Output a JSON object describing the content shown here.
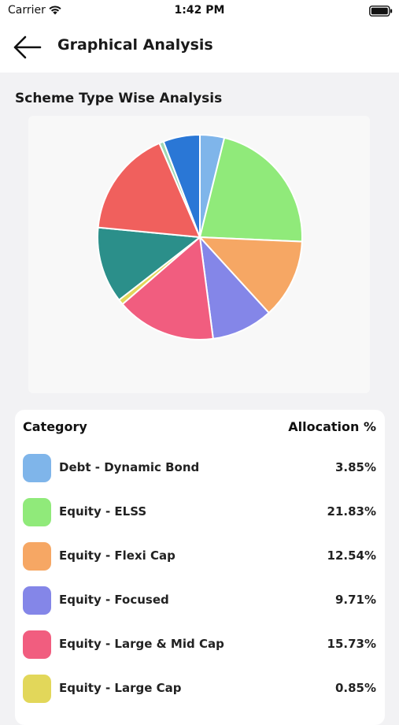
{
  "status_bar": {
    "carrier": "Carrier",
    "time": "1:42 PM",
    "wifi_icon": "wifi-icon",
    "battery_icon": "battery-icon"
  },
  "header": {
    "back_icon": "arrow-left-icon",
    "title": "Graphical Analysis"
  },
  "section": {
    "title": "Scheme Type Wise Analysis"
  },
  "table": {
    "header_category": "Category",
    "header_allocation": "Allocation %",
    "rows": [
      {
        "label": "Debt - Dynamic Bond",
        "value": "3.85%",
        "color": "#7fb5ea"
      },
      {
        "label": "Equity - ELSS",
        "value": "21.83%",
        "color": "#90ea7a"
      },
      {
        "label": "Equity - Flexi Cap",
        "value": "12.54%",
        "color": "#f6a764"
      },
      {
        "label": "Equity - Focused",
        "value": "9.71%",
        "color": "#8486e8"
      },
      {
        "label": "Equity - Large & Mid Cap",
        "value": "15.73%",
        "color": "#f15d7f"
      },
      {
        "label": "Equity - Large Cap",
        "value": "0.85%",
        "color": "#e2d75a"
      }
    ]
  },
  "chart_data": {
    "type": "pie",
    "title": "Scheme Type Wise Analysis",
    "slices": [
      {
        "name": "Debt - Dynamic Bond",
        "value": 3.85,
        "color": "#7fb5ea"
      },
      {
        "name": "Equity - ELSS",
        "value": 21.83,
        "color": "#90ea7a"
      },
      {
        "name": "Equity - Flexi Cap",
        "value": 12.54,
        "color": "#f6a764"
      },
      {
        "name": "Equity - Focused",
        "value": 9.71,
        "color": "#8486e8"
      },
      {
        "name": "Equity - Large & Mid Cap",
        "value": 15.73,
        "color": "#f15d7f"
      },
      {
        "name": "Equity - Large Cap",
        "value": 0.85,
        "color": "#e2d75a"
      },
      {
        "name": "",
        "value": 12.0,
        "color": "#2b8f8a"
      },
      {
        "name": "",
        "value": 17.0,
        "color": "#f0605d"
      },
      {
        "name": "",
        "value": 0.7,
        "color": "#9ed8b5"
      },
      {
        "name": "",
        "value": 5.79,
        "color": "#2a77d6"
      }
    ]
  }
}
